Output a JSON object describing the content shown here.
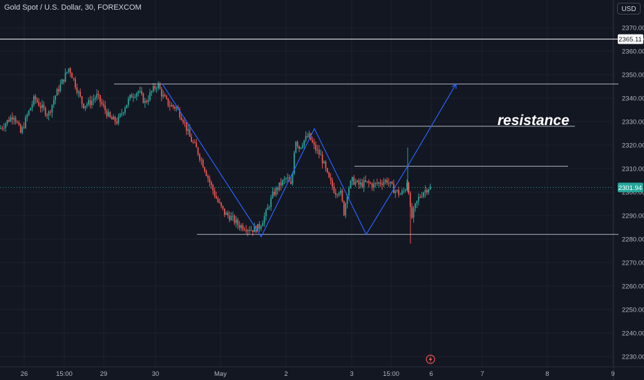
{
  "header": {
    "title": "Gold Spot / U.S. Dollar, 30, FOREXCOM",
    "currency": "USD"
  },
  "price_axis": {
    "ticks": [
      "2370.00",
      "2360.00",
      "2350.00",
      "2340.00",
      "2330.00",
      "2320.00",
      "2310.00",
      "2300.00",
      "2290.00",
      "2280.00",
      "2270.00",
      "2260.00",
      "2250.00",
      "2240.00",
      "2230.00"
    ],
    "current_price_label": "2301.94",
    "marked_price_label": "2365.11"
  },
  "time_axis": {
    "ticks": [
      "26",
      "15:00",
      "29",
      "30",
      "May",
      "2",
      "3",
      "15:00",
      "6",
      "7",
      "8",
      "9"
    ]
  },
  "annotation": {
    "text": "resistance"
  },
  "colors": {
    "background": "#131722",
    "up": "#26a69a",
    "down": "#ef5350",
    "pattern_line": "#2962ff",
    "level_line": "#d1d4dc",
    "current_price": "#26a69a",
    "grid": "#1e222d"
  },
  "icons": {
    "event_icon": "lightning-bolt-icon"
  },
  "chart_data": {
    "type": "candlestick",
    "title": "Gold Spot / U.S. Dollar, 30, FOREXCOM",
    "ylim": [
      2227,
      2377
    ],
    "y_ticks": [
      2370,
      2360,
      2350,
      2340,
      2330,
      2320,
      2310,
      2300,
      2290,
      2280,
      2270,
      2260,
      2250,
      2240,
      2230
    ],
    "x_ticks": [
      "26",
      "15:00",
      "29",
      "30",
      "May",
      "2",
      "3",
      "15:00",
      "6",
      "7",
      "8",
      "9"
    ],
    "current_price": 2301.94,
    "horizontal_lines": [
      2365.11,
      2346,
      2328,
      2311,
      2282
    ],
    "price_path": [
      [
        0,
        2327
      ],
      [
        10,
        2330
      ],
      [
        20,
        2333
      ],
      [
        30,
        2325
      ],
      [
        40,
        2333
      ],
      [
        50,
        2340
      ],
      [
        60,
        2336
      ],
      [
        70,
        2333
      ],
      [
        80,
        2341
      ],
      [
        90,
        2347
      ],
      [
        100,
        2353
      ],
      [
        110,
        2345
      ],
      [
        120,
        2337
      ],
      [
        130,
        2338
      ],
      [
        140,
        2341
      ],
      [
        150,
        2336
      ],
      [
        160,
        2331
      ],
      [
        170,
        2330
      ],
      [
        180,
        2336
      ],
      [
        190,
        2341
      ],
      [
        200,
        2343
      ],
      [
        210,
        2338
      ],
      [
        220,
        2343
      ],
      [
        228,
        2346
      ],
      [
        235,
        2341
      ],
      [
        245,
        2337
      ],
      [
        255,
        2336
      ],
      [
        265,
        2331
      ],
      [
        275,
        2323
      ],
      [
        285,
        2318
      ],
      [
        295,
        2311
      ],
      [
        305,
        2303
      ],
      [
        315,
        2296
      ],
      [
        325,
        2291
      ],
      [
        335,
        2289
      ],
      [
        345,
        2286
      ],
      [
        355,
        2285
      ],
      [
        365,
        2284
      ],
      [
        375,
        2285
      ],
      [
        385,
        2291
      ],
      [
        395,
        2299
      ],
      [
        405,
        2303
      ],
      [
        415,
        2306
      ],
      [
        422,
        2302
      ],
      [
        427,
        2323
      ],
      [
        433,
        2319
      ],
      [
        440,
        2322
      ],
      [
        447,
        2324
      ],
      [
        455,
        2319
      ],
      [
        465,
        2315
      ],
      [
        475,
        2306
      ],
      [
        485,
        2300
      ],
      [
        492,
        2301
      ],
      [
        498,
        2291
      ],
      [
        503,
        2301
      ],
      [
        510,
        2305
      ],
      [
        520,
        2303
      ],
      [
        530,
        2304
      ],
      [
        540,
        2303
      ],
      [
        550,
        2304
      ],
      [
        560,
        2305
      ],
      [
        570,
        2301
      ],
      [
        580,
        2299
      ],
      [
        586,
        2301
      ],
      [
        590,
        2306
      ],
      [
        595,
        2288
      ],
      [
        600,
        2293
      ],
      [
        605,
        2297
      ],
      [
        612,
        2300
      ],
      [
        620,
        2302
      ],
      [
        623,
        2301.94
      ]
    ]
  }
}
